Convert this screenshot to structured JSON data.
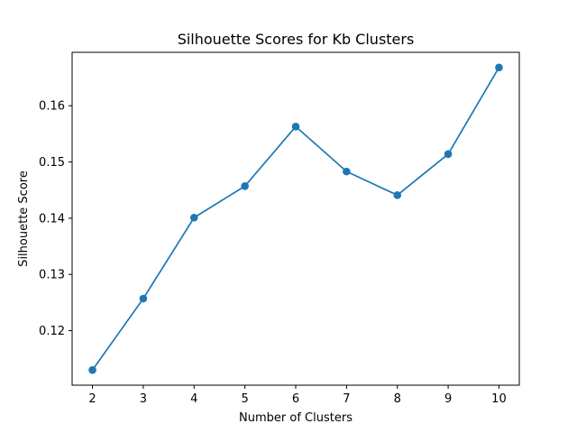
{
  "chart_data": {
    "type": "line",
    "title": "Silhouette Scores for Kb Clusters",
    "xlabel": "Number of Clusters",
    "ylabel": "Silhouette Score",
    "x": [
      2,
      3,
      4,
      5,
      6,
      7,
      8,
      9,
      10
    ],
    "series": [
      {
        "values": [
          0.113,
          0.1257,
          0.1401,
          0.1457,
          0.1563,
          0.1483,
          0.1441,
          0.1514,
          0.1668
        ],
        "color": "#1f77b4",
        "marker": "circle"
      }
    ],
    "xticks": [
      "2",
      "3",
      "4",
      "5",
      "6",
      "7",
      "8",
      "9",
      "10"
    ],
    "yticks": [
      "0.12",
      "0.13",
      "0.14",
      "0.15",
      "0.16"
    ],
    "ytick_values": [
      0.12,
      0.13,
      0.14,
      0.15,
      0.16
    ],
    "xlim": [
      1.6,
      10.4
    ],
    "ylim": [
      0.1103,
      0.1695
    ],
    "grid": false,
    "legend": false
  }
}
